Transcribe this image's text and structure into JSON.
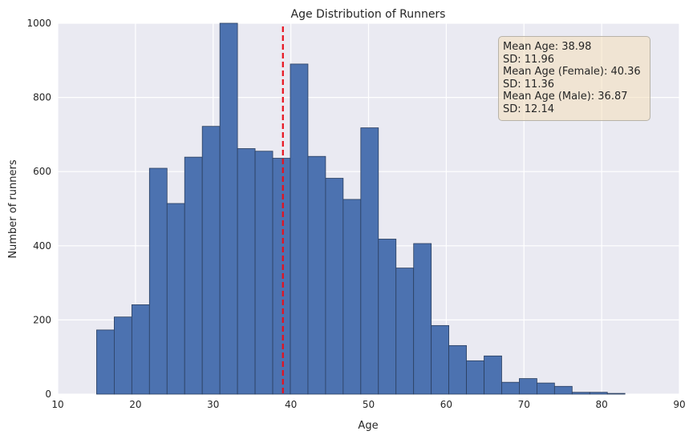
{
  "chart_data": {
    "type": "bar",
    "title": "Age Distribution of Runners",
    "xlabel": "Age",
    "ylabel": "Number of runners",
    "xlim": [
      10,
      90
    ],
    "ylim": [
      0,
      1000
    ],
    "xticks": [
      "10",
      "20",
      "30",
      "40",
      "50",
      "60",
      "70",
      "80",
      "90"
    ],
    "yticks": [
      "0",
      "200",
      "400",
      "600",
      "800",
      "1000"
    ],
    "grid": true,
    "bin_edges": [
      15.0,
      17.267,
      19.533,
      21.8,
      24.067,
      26.333,
      28.6,
      30.867,
      33.133,
      35.4,
      37.667,
      39.933,
      42.2,
      44.467,
      46.733,
      49.0,
      51.267,
      53.533,
      55.8,
      58.067,
      60.333,
      62.6,
      64.867,
      67.133,
      69.4,
      71.667,
      73.933,
      76.2,
      78.467,
      80.733,
      83.0
    ],
    "values": [
      173,
      208,
      241,
      609,
      514,
      639,
      722,
      1000,
      662,
      655,
      636,
      890,
      641,
      582,
      525,
      718,
      418,
      340,
      406,
      185,
      131,
      90,
      103,
      32,
      42,
      30,
      21,
      5,
      5,
      2
    ],
    "mean_line": {
      "x": 38.98,
      "color": "#e8101c",
      "style": "dashed"
    },
    "bar_color": "#4c72b0",
    "annotations": [
      "Mean Age: 38.98",
      "SD: 11.96",
      "Mean Age (Female): 40.36",
      "SD: 11.36",
      "Mean Age (Male): 36.87",
      "SD: 12.14"
    ]
  }
}
